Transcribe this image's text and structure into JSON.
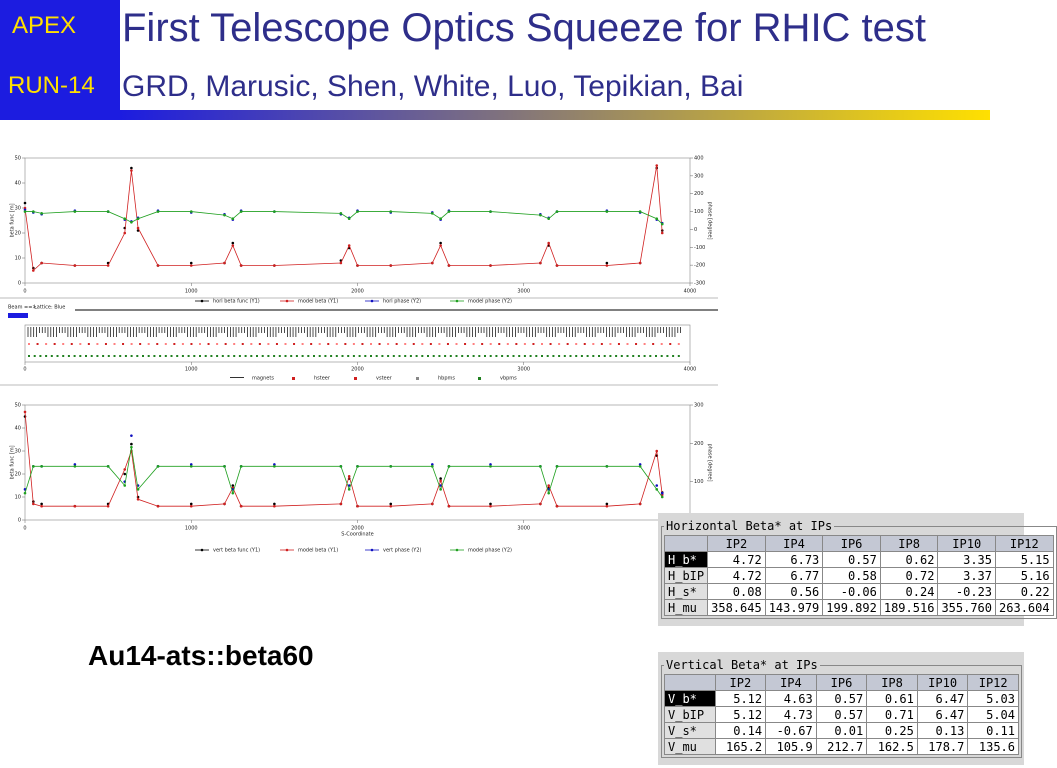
{
  "header": {
    "tag1": "APEX",
    "tag2": "RUN-14",
    "title": "First Telescope Optics Squeeze for RHIC test",
    "subtitle": "GRD, Marusic, Shen, White, Luo, Tepikian, Bai"
  },
  "charts": [
    {
      "type": "line",
      "ylabel": "beta func [m]",
      "y2label": "phase [degree]",
      "x": [
        0,
        50,
        100,
        300,
        500,
        600,
        640,
        680,
        800,
        1000,
        1200,
        1250,
        1300,
        1500,
        1900,
        1950,
        2000,
        2200,
        2450,
        2500,
        2550,
        2800,
        3100,
        3150,
        3200,
        3500,
        3700,
        3800,
        3833
      ],
      "xlim": [
        0,
        4000
      ],
      "xticks": [
        0,
        1000,
        2000,
        3000,
        4000
      ],
      "ylim": [
        0,
        50
      ],
      "yticks": [
        0,
        10,
        20,
        30,
        40,
        50
      ],
      "y2lim": [
        -300,
        400
      ],
      "y2ticks": [
        -300,
        -200,
        -100,
        0,
        100,
        200,
        300,
        400
      ],
      "series": [
        {
          "name": "hori beta func (Y1)",
          "color": "#000000",
          "style": "markers",
          "values": [
            32,
            6,
            8,
            7,
            8,
            22,
            46,
            21,
            7,
            8,
            8,
            16,
            7,
            7,
            9,
            14,
            7,
            7,
            8,
            16,
            7,
            7,
            8,
            15,
            7,
            8,
            8,
            46,
            21
          ]
        },
        {
          "name": "model beta (Y1)",
          "color": "#d02020",
          "style": "line",
          "values": [
            30,
            5,
            8,
            7,
            7,
            20,
            45,
            22,
            7,
            7,
            8,
            15,
            7,
            7,
            8,
            15,
            7,
            7,
            8,
            15,
            7,
            7,
            8,
            16,
            7,
            7,
            8,
            47,
            20
          ]
        },
        {
          "name": "hori phase (Y2)",
          "color": "#1010c0",
          "style": "markers",
          "axis": "y2",
          "values": [
            110,
            95,
            85,
            105,
            100,
            55,
            45,
            65,
            105,
            95,
            85,
            55,
            105,
            100,
            85,
            65,
            105,
            95,
            95,
            55,
            105,
            100,
            85,
            65,
            100,
            105,
            95,
            55,
            35
          ]
        },
        {
          "name": "model phase (Y2)",
          "color": "#20a020",
          "style": "line",
          "axis": "y2",
          "values": [
            100,
            100,
            90,
            100,
            100,
            60,
            40,
            60,
            100,
            100,
            80,
            60,
            100,
            100,
            90,
            60,
            100,
            100,
            90,
            60,
            100,
            100,
            80,
            60,
            100,
            100,
            100,
            60,
            30
          ]
        }
      ]
    },
    {
      "type": "line",
      "xlabel": "S-Coordinate",
      "ylabel": "beta func [m]",
      "y2label": "phase [degree]",
      "x": [
        0,
        50,
        100,
        300,
        500,
        600,
        640,
        680,
        800,
        1000,
        1200,
        1250,
        1300,
        1500,
        1900,
        1950,
        2000,
        2200,
        2450,
        2500,
        2550,
        2800,
        3100,
        3150,
        3200,
        3500,
        3700,
        3800,
        3833
      ],
      "xlim": [
        0,
        4000
      ],
      "xticks": [
        0,
        1000,
        2000,
        3000,
        4000
      ],
      "ylim": [
        0,
        50
      ],
      "yticks": [
        0,
        10,
        20,
        30,
        40,
        50
      ],
      "y2lim": [
        0,
        300
      ],
      "y2ticks": [
        0,
        100,
        200,
        300
      ],
      "series": [
        {
          "name": "vert beta func (Y1)",
          "color": "#000000",
          "style": "markers",
          "values": [
            45,
            8,
            7,
            6,
            7,
            20,
            33,
            10,
            6,
            7,
            7,
            15,
            6,
            7,
            7,
            18,
            6,
            7,
            7,
            18,
            6,
            7,
            7,
            14,
            6,
            7,
            7,
            28,
            12
          ]
        },
        {
          "name": "model beta (Y1)",
          "color": "#d02020",
          "style": "line",
          "values": [
            47,
            7,
            6,
            6,
            6,
            22,
            30,
            9,
            6,
            6,
            7,
            14,
            6,
            6,
            7,
            19,
            6,
            6,
            7,
            17,
            6,
            6,
            7,
            15,
            6,
            6,
            7,
            30,
            11
          ]
        },
        {
          "name": "vert phase (Y2)",
          "color": "#1010c0",
          "style": "markers",
          "axis": "y2",
          "values": [
            80,
            140,
            140,
            145,
            140,
            100,
            220,
            90,
            140,
            145,
            140,
            80,
            140,
            145,
            140,
            90,
            140,
            140,
            145,
            90,
            140,
            145,
            140,
            80,
            140,
            140,
            145,
            90,
            70
          ]
        },
        {
          "name": "model phase (Y2)",
          "color": "#20a020",
          "style": "line",
          "axis": "y2",
          "values": [
            70,
            140,
            140,
            140,
            140,
            90,
            190,
            80,
            140,
            140,
            140,
            70,
            140,
            140,
            140,
            80,
            140,
            140,
            140,
            80,
            140,
            140,
            140,
            70,
            140,
            140,
            140,
            80,
            60
          ]
        }
      ]
    }
  ],
  "lattice": {
    "beam": "Beam ==>",
    "name": "Lattice: Blue",
    "xticks": [
      0,
      1000,
      2000,
      3000,
      4000
    ],
    "xlim": [
      0,
      4000
    ],
    "legend": [
      "magnets",
      "hsteer",
      "vsteer",
      "hbpms",
      "vbpms"
    ]
  },
  "label": "Au14-ats::beta60",
  "tables": [
    {
      "title": "Horizontal Beta* at IPs",
      "columns": [
        "IP2",
        "IP4",
        "IP6",
        "IP8",
        "IP10",
        "IP12"
      ],
      "rows": [
        [
          "H_b*",
          "4.72",
          "6.73",
          "0.57",
          "0.62",
          "3.35",
          "5.15"
        ],
        [
          "H_bIP",
          "4.72",
          "6.77",
          "0.58",
          "0.72",
          "3.37",
          "5.16"
        ],
        [
          "H_s*",
          "0.08",
          "0.56",
          "-0.06",
          "0.24",
          "-0.23",
          "0.22"
        ],
        [
          "H_mu",
          "358.645",
          "143.979",
          "199.892",
          "189.516",
          "355.760",
          "263.604"
        ]
      ]
    },
    {
      "title": "Vertical Beta* at IPs",
      "columns": [
        "IP2",
        "IP4",
        "IP6",
        "IP8",
        "IP10",
        "IP12"
      ],
      "rows": [
        [
          "V_b*",
          "5.12",
          "4.63",
          "0.57",
          "0.61",
          "6.47",
          "5.03"
        ],
        [
          "V_bIP",
          "5.12",
          "4.73",
          "0.57",
          "0.71",
          "6.47",
          "5.04"
        ],
        [
          "V_s*",
          "0.14",
          "-0.67",
          "0.01",
          "0.25",
          "0.13",
          "0.11"
        ],
        [
          "V_mu",
          "165.2",
          "105.9",
          "212.7",
          "162.5",
          "178.7",
          "135.6"
        ]
      ]
    }
  ]
}
